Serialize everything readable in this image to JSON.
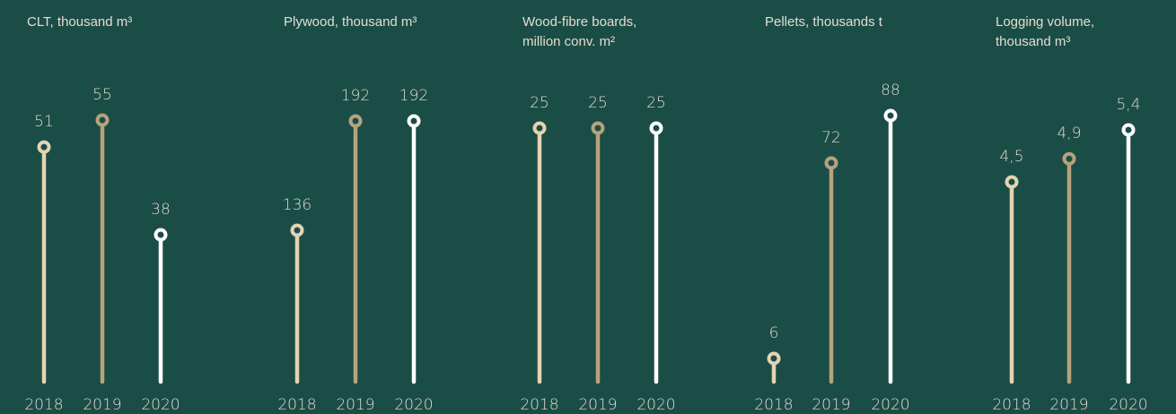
{
  "colors": {
    "background": "#1b4d47",
    "year_2018": "#e3d4b2",
    "year_2019": "#b5a37d",
    "year_2020": "#ffffff",
    "text": "#e0dacd"
  },
  "chart_data": [
    {
      "type": "lollipop",
      "title_lines": [
        "CLT, thousand m³"
      ],
      "categories": [
        "2018",
        "2019",
        "2020"
      ],
      "values": [
        51,
        55,
        38
      ],
      "value_labels": [
        "51",
        "55",
        "38"
      ]
    },
    {
      "type": "lollipop",
      "title_lines": [
        "Plywood, thousand m³"
      ],
      "categories": [
        "2018",
        "2019",
        "2020"
      ],
      "values": [
        136,
        192,
        192
      ],
      "value_labels": [
        "136",
        "192",
        "192"
      ]
    },
    {
      "type": "lollipop",
      "title_lines": [
        "Wood-fibre boards,",
        "million conv. m²"
      ],
      "categories": [
        "2018",
        "2019",
        "2020"
      ],
      "values": [
        25,
        25,
        25
      ],
      "value_labels": [
        "25",
        "25",
        "25"
      ]
    },
    {
      "type": "lollipop",
      "title_lines": [
        "Pellets, thousands t"
      ],
      "categories": [
        "2018",
        "2019",
        "2020"
      ],
      "values": [
        6,
        72,
        88
      ],
      "value_labels": [
        "6",
        "72",
        "88"
      ]
    },
    {
      "type": "lollipop",
      "title_lines": [
        "Logging volume,",
        "thousand m³"
      ],
      "categories": [
        "2018",
        "2019",
        "2020"
      ],
      "values": [
        4.5,
        4.9,
        5.4
      ],
      "value_labels": [
        "4,5",
        "4,9",
        "5,4"
      ]
    }
  ]
}
